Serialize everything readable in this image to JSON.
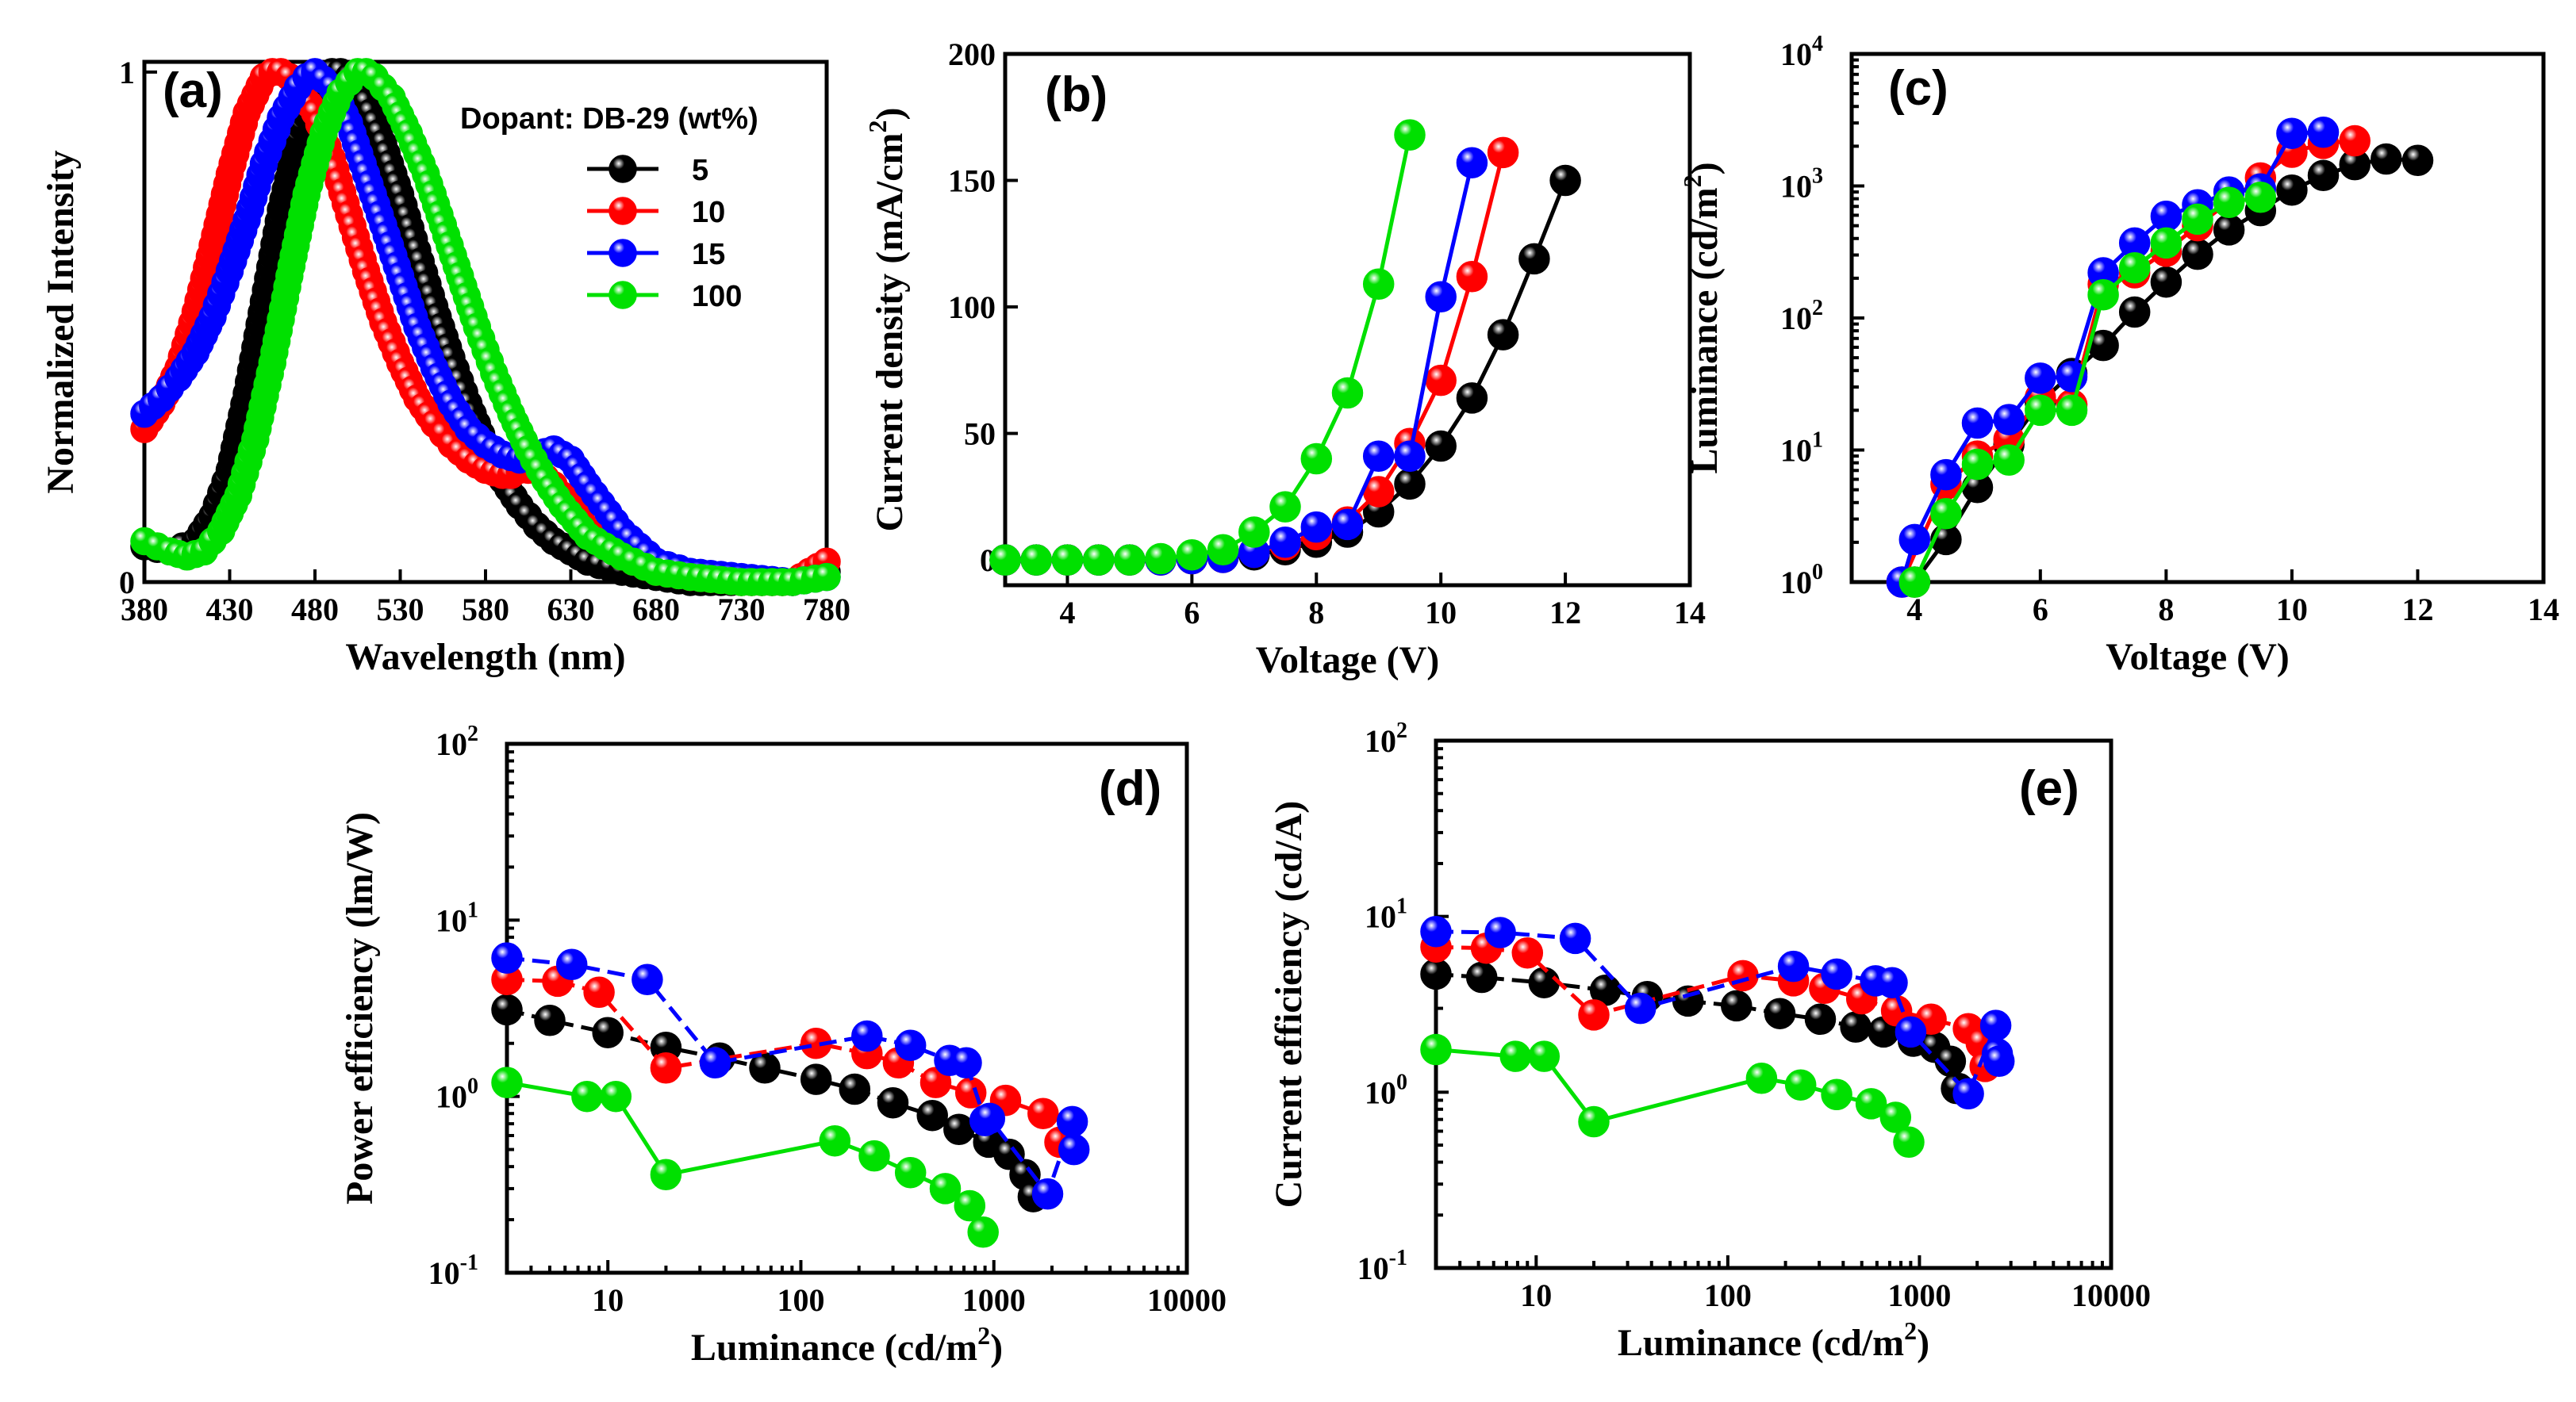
{
  "series_styles": [
    {
      "name": "5",
      "color": "#000000"
    },
    {
      "name": "10",
      "color": "#ff0000"
    },
    {
      "name": "15",
      "color": "#0000ff"
    },
    {
      "name": "100",
      "color": "#00e000"
    }
  ],
  "legend": {
    "title": "Dopant: DB-29 (wt%)",
    "placement": "top-right"
  },
  "chart_data": [
    {
      "id": "a",
      "type": "line",
      "label": "(a)",
      "xlabel": "Wavelength (nm)",
      "ylabel": "Normalized Intensity",
      "xlim": [
        380,
        780
      ],
      "ylim": [
        0,
        1.02
      ],
      "xscale": "linear",
      "yscale": "linear",
      "xticks": [
        380,
        430,
        480,
        530,
        580,
        630,
        680,
        730,
        780
      ],
      "xtick_labels": [
        "380",
        "430",
        "480",
        "530",
        "580",
        "630",
        "680",
        "730",
        "780"
      ],
      "yticks": [
        0,
        1
      ],
      "ytick_labels": [
        "0",
        "1"
      ],
      "dense_markers": true,
      "series": [
        {
          "name": "5",
          "x": [
            380,
            395,
            410,
            420,
            430,
            440,
            450,
            460,
            470,
            480,
            490,
            495,
            500,
            505,
            510,
            520,
            530,
            540,
            550,
            560,
            570,
            580,
            590,
            600,
            610,
            620,
            630,
            640,
            660,
            680,
            700,
            730,
            760,
            780
          ],
          "y": [
            0.07,
            0.06,
            0.08,
            0.13,
            0.22,
            0.37,
            0.55,
            0.73,
            0.87,
            0.96,
            1.0,
            1.0,
            0.99,
            0.97,
            0.94,
            0.86,
            0.76,
            0.65,
            0.54,
            0.44,
            0.35,
            0.27,
            0.2,
            0.15,
            0.11,
            0.08,
            0.06,
            0.04,
            0.02,
            0.01,
            0.0,
            0.0,
            0.0,
            0.02
          ]
        },
        {
          "name": "10",
          "x": [
            380,
            390,
            400,
            410,
            420,
            430,
            440,
            450,
            455,
            460,
            465,
            470,
            480,
            490,
            500,
            510,
            520,
            530,
            540,
            550,
            560,
            570,
            580,
            590,
            595,
            600,
            610,
            620,
            630,
            640,
            660,
            680,
            700,
            730,
            760,
            780
          ],
          "y": [
            0.3,
            0.35,
            0.42,
            0.53,
            0.66,
            0.8,
            0.92,
            0.99,
            1.0,
            1.0,
            0.99,
            0.97,
            0.92,
            0.83,
            0.72,
            0.61,
            0.51,
            0.43,
            0.36,
            0.31,
            0.27,
            0.24,
            0.22,
            0.21,
            0.21,
            0.22,
            0.22,
            0.19,
            0.15,
            0.1,
            0.05,
            0.02,
            0.01,
            0.0,
            0.0,
            0.04
          ]
        },
        {
          "name": "15",
          "x": [
            380,
            390,
            400,
            410,
            420,
            430,
            440,
            450,
            460,
            470,
            475,
            480,
            490,
            500,
            510,
            520,
            530,
            540,
            550,
            560,
            570,
            580,
            590,
            600,
            610,
            620,
            630,
            640,
            660,
            680,
            700,
            730,
            760,
            780
          ],
          "y": [
            0.33,
            0.36,
            0.4,
            0.45,
            0.52,
            0.61,
            0.71,
            0.82,
            0.91,
            0.97,
            0.99,
            1.0,
            0.97,
            0.9,
            0.8,
            0.7,
            0.6,
            0.5,
            0.42,
            0.35,
            0.3,
            0.27,
            0.25,
            0.24,
            0.25,
            0.26,
            0.24,
            0.19,
            0.1,
            0.04,
            0.02,
            0.01,
            0.0,
            0.01
          ]
        },
        {
          "name": "100",
          "x": [
            380,
            395,
            405,
            415,
            425,
            435,
            445,
            455,
            465,
            475,
            485,
            495,
            505,
            510,
            515,
            525,
            535,
            545,
            555,
            565,
            575,
            585,
            595,
            605,
            615,
            625,
            640,
            660,
            680,
            700,
            730,
            760,
            780
          ],
          "y": [
            0.08,
            0.06,
            0.05,
            0.06,
            0.1,
            0.17,
            0.28,
            0.43,
            0.6,
            0.76,
            0.88,
            0.96,
            1.0,
            1.0,
            0.99,
            0.95,
            0.88,
            0.8,
            0.7,
            0.6,
            0.5,
            0.41,
            0.33,
            0.26,
            0.2,
            0.15,
            0.09,
            0.05,
            0.02,
            0.01,
            0.0,
            0.0,
            0.01
          ]
        }
      ]
    },
    {
      "id": "b",
      "type": "line",
      "label": "(b)",
      "xlabel": "Voltage (V)",
      "ylabel": "Current density (mA/cm",
      "ylabel_sup": "2",
      "ylabel_tail": ")",
      "xlim": [
        3,
        14
      ],
      "ylim": [
        -10,
        200
      ],
      "xscale": "linear",
      "yscale": "linear",
      "xticks": [
        4,
        6,
        8,
        10,
        12,
        14
      ],
      "xtick_labels": [
        "4",
        "6",
        "8",
        "10",
        "12",
        "14"
      ],
      "yticks": [
        0,
        50,
        100,
        150,
        200
      ],
      "ytick_labels": [
        "0",
        "50",
        "100",
        "150",
        "200"
      ],
      "series": [
        {
          "name": "5",
          "x": [
            3,
            3.5,
            4,
            4.5,
            5,
            5.5,
            6,
            6.5,
            7,
            7.5,
            8,
            8.5,
            9,
            9.5,
            10,
            10.5,
            11,
            11.5,
            12
          ],
          "y": [
            0,
            0,
            0,
            0,
            0,
            0,
            0.5,
            1,
            2,
            4,
            7,
            11,
            19,
            30,
            45,
            64,
            89,
            119,
            150
          ]
        },
        {
          "name": "10",
          "x": [
            3,
            3.5,
            4,
            4.5,
            5,
            5.5,
            6,
            6.5,
            7,
            7.5,
            8,
            8.5,
            9,
            9.5,
            10,
            10.5,
            11
          ],
          "y": [
            0,
            0,
            0,
            0,
            0,
            0,
            0.5,
            1,
            3,
            6,
            10,
            15,
            27,
            46,
            71,
            112,
            161
          ]
        },
        {
          "name": "15",
          "x": [
            3,
            3.5,
            4,
            4.5,
            5,
            5.5,
            6,
            6.5,
            7,
            7.5,
            8,
            8.5,
            9,
            9.5,
            10,
            10.5
          ],
          "y": [
            0,
            0,
            0,
            0,
            0,
            0,
            0.5,
            1,
            3,
            7,
            13,
            14,
            41,
            41,
            104,
            157
          ]
        },
        {
          "name": "100",
          "x": [
            3,
            3.5,
            4,
            4.5,
            5,
            5.5,
            6,
            6.5,
            7,
            7.5,
            8,
            8.5,
            9,
            9.5
          ],
          "y": [
            0,
            0,
            0,
            0,
            0,
            0.5,
            2,
            4,
            11,
            21,
            40,
            66,
            109,
            168
          ]
        }
      ]
    },
    {
      "id": "c",
      "type": "line",
      "label": "(c)",
      "xlabel": "Voltage (V)",
      "ylabel": "Luminance (cd/m",
      "ylabel_sup": "2",
      "ylabel_tail": ")",
      "xlim": [
        3,
        14
      ],
      "ylim": [
        1,
        10000
      ],
      "xscale": "linear",
      "yscale": "log",
      "xticks": [
        4,
        6,
        8,
        10,
        12,
        14
      ],
      "xtick_labels": [
        "4",
        "6",
        "8",
        "10",
        "12",
        "14"
      ],
      "yticks": [
        1,
        10,
        100,
        1000,
        10000
      ],
      "ytick_labels": [
        [
          "10",
          "0"
        ],
        [
          "10",
          "1"
        ],
        [
          "10",
          "2"
        ],
        [
          "10",
          "3"
        ],
        [
          "10",
          "4"
        ]
      ],
      "series": [
        {
          "name": "5",
          "x": [
            4,
            4.5,
            5,
            5.5,
            6,
            6.5,
            7,
            7.5,
            8,
            8.5,
            9,
            9.5,
            10,
            10.5,
            11,
            11.5,
            12
          ],
          "y": [
            1,
            2.1,
            5.2,
            11,
            23,
            38,
            62,
            111,
            187,
            304,
            465,
            650,
            930,
            1200,
            1450,
            1600,
            1560
          ]
        },
        {
          "name": "10",
          "x": [
            3.8,
            4.5,
            5,
            5.5,
            6,
            6.5,
            7,
            7.5,
            8,
            8.5,
            9,
            9.5,
            10,
            10.5,
            11
          ],
          "y": [
            1,
            5.5,
            9,
            12,
            25,
            22,
            180,
            220,
            320,
            500,
            760,
            1150,
            1800,
            2100,
            2200
          ]
        },
        {
          "name": "15",
          "x": [
            3.8,
            4,
            4.5,
            5,
            5.5,
            6,
            6.5,
            7,
            7.5,
            8,
            8.5,
            9,
            9.5,
            10,
            10.5
          ],
          "y": [
            1,
            2.1,
            6.5,
            16,
            17,
            35,
            36,
            220,
            370,
            590,
            720,
            900,
            950,
            2500,
            2550
          ]
        },
        {
          "name": "100",
          "x": [
            4,
            4.5,
            5,
            5.5,
            6,
            6.5,
            7,
            7.5,
            8,
            8.5,
            9,
            9.5
          ],
          "y": [
            1,
            3.3,
            7.8,
            8.4,
            20,
            20,
            150,
            240,
            370,
            560,
            750,
            820
          ]
        }
      ]
    },
    {
      "id": "d",
      "type": "line",
      "label": "(d)",
      "xlabel": "Luminance (cd/m",
      "xlabel_sup": "2",
      "xlabel_tail": ")",
      "ylabel": "Power efficiency (lm/W)",
      "xlim": [
        3,
        10000
      ],
      "ylim": [
        0.1,
        100
      ],
      "xscale": "log",
      "yscale": "log",
      "xticks": [
        10,
        100,
        1000,
        10000
      ],
      "xtick_labels": [
        "10",
        "100",
        "1000",
        "10000"
      ],
      "yticks": [
        0.1,
        1,
        10,
        100
      ],
      "ytick_labels": [
        [
          "10",
          "-1"
        ],
        [
          "10",
          "0"
        ],
        [
          "10",
          "1"
        ],
        [
          "10",
          "2"
        ]
      ],
      "series": [
        {
          "name": "5",
          "x": [
            3,
            5,
            10,
            20,
            38,
            65,
            120,
            190,
            300,
            480,
            660,
            940,
            1200,
            1450,
            1600
          ],
          "y": [
            3.1,
            2.7,
            2.3,
            1.9,
            1.65,
            1.45,
            1.25,
            1.1,
            0.92,
            0.78,
            0.65,
            0.55,
            0.47,
            0.36,
            0.27
          ]
        },
        {
          "name": "10",
          "x": [
            3,
            5.5,
            9,
            20,
            120,
            220,
            320,
            500,
            760,
            1150,
            1800,
            2200
          ],
          "y": [
            4.6,
            4.5,
            3.9,
            1.45,
            2.0,
            1.75,
            1.55,
            1.2,
            1.05,
            0.95,
            0.8,
            0.55
          ]
        },
        {
          "name": "15",
          "x": [
            3,
            6.5,
            16,
            36,
            220,
            370,
            590,
            720,
            900,
            950,
            1900,
            2550,
            2600
          ],
          "y": [
            6.1,
            5.6,
            4.6,
            1.55,
            2.2,
            1.95,
            1.6,
            1.55,
            0.73,
            0.75,
            0.28,
            0.72,
            0.5
          ]
        },
        {
          "name": "100",
          "x": [
            3,
            7.8,
            11,
            20,
            150,
            240,
            370,
            560,
            750,
            880
          ],
          "y": [
            1.2,
            1.0,
            1.0,
            0.36,
            0.56,
            0.46,
            0.37,
            0.3,
            0.24,
            0.17
          ]
        }
      ]
    },
    {
      "id": "e",
      "type": "line",
      "label": "(e)",
      "xlabel": "Luminance (cd/m",
      "xlabel_sup": "2",
      "xlabel_tail": ")",
      "ylabel": "Current efficiency (cd/A)",
      "xlim": [
        3,
        10000
      ],
      "ylim": [
        0.1,
        100
      ],
      "xscale": "log",
      "yscale": "log",
      "xticks": [
        10,
        100,
        1000,
        10000
      ],
      "xtick_labels": [
        "10",
        "100",
        "1000",
        "10000"
      ],
      "yticks": [
        0.1,
        1,
        10,
        100
      ],
      "ytick_labels": [
        [
          "10",
          "-1"
        ],
        [
          "10",
          "0"
        ],
        [
          "10",
          "1"
        ],
        [
          "10",
          "2"
        ]
      ],
      "series": [
        {
          "name": "5",
          "x": [
            3,
            5.2,
            11,
            23,
            38,
            62,
            111,
            187,
            304,
            465,
            650,
            930,
            1200,
            1450,
            1600,
            1560
          ],
          "y": [
            4.7,
            4.5,
            4.2,
            3.8,
            3.5,
            3.3,
            3.1,
            2.8,
            2.6,
            2.35,
            2.2,
            1.95,
            1.8,
            1.5,
            1.05,
            1.05
          ]
        },
        {
          "name": "10",
          "x": [
            3,
            5.5,
            9,
            20,
            120,
            220,
            320,
            500,
            760,
            1150,
            1800,
            2100,
            2200
          ],
          "y": [
            6.7,
            6.6,
            6.2,
            2.75,
            4.6,
            4.3,
            3.9,
            3.4,
            2.9,
            2.6,
            2.3,
            1.9,
            1.4
          ]
        },
        {
          "name": "15",
          "x": [
            3,
            6.5,
            16,
            35,
            220,
            370,
            590,
            720,
            900,
            1800,
            2500,
            2550,
            2600
          ],
          "y": [
            8.2,
            8.1,
            7.5,
            3.0,
            5.2,
            4.7,
            4.3,
            4.2,
            2.2,
            0.98,
            2.4,
            1.65,
            1.5
          ]
        },
        {
          "name": "100",
          "x": [
            3,
            7.8,
            11,
            20,
            150,
            240,
            370,
            560,
            750,
            880
          ],
          "y": [
            1.75,
            1.6,
            1.6,
            0.68,
            1.2,
            1.1,
            0.97,
            0.86,
            0.72,
            0.52
          ]
        }
      ]
    }
  ]
}
